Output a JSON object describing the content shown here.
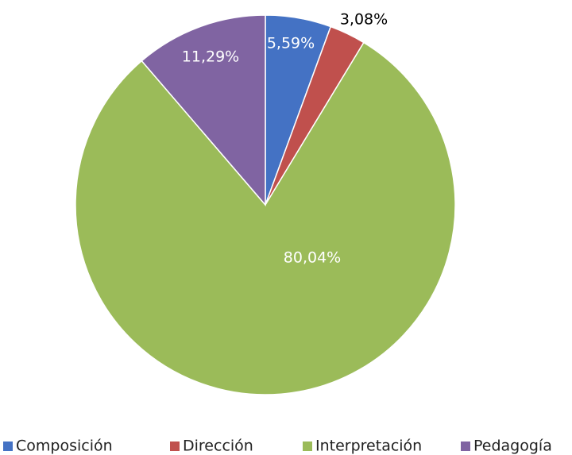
{
  "chart_data": {
    "type": "pie",
    "categories": [
      "Composición",
      "Dirección",
      "Interpretación",
      "Pedagogía"
    ],
    "values": [
      5.59,
      3.08,
      80.04,
      11.29
    ],
    "value_labels": [
      "5,59%",
      "3,08%",
      "80,04%",
      "11,29%"
    ],
    "colors": [
      "#4472c4",
      "#c0504d",
      "#9bbb59",
      "#8064a2"
    ],
    "legend": "bottom"
  }
}
